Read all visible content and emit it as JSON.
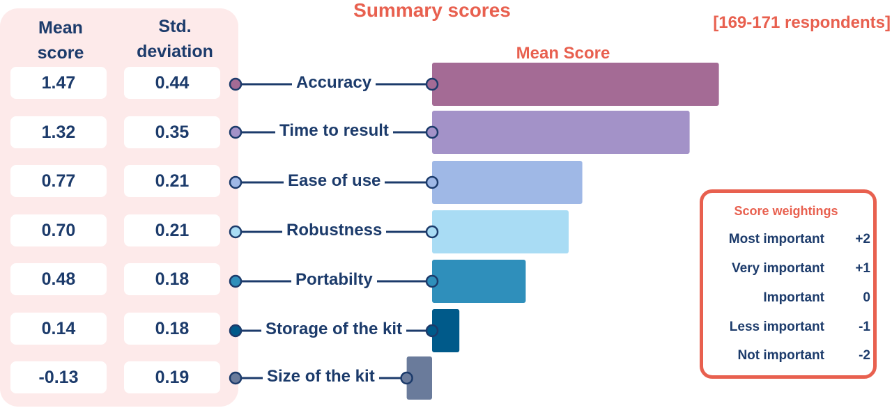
{
  "title": "Summary scores",
  "respondents": "[169-171 respondents]",
  "table": {
    "mean_header": [
      "Mean",
      "score"
    ],
    "std_header": [
      "Std.",
      "deviation"
    ],
    "rows": [
      {
        "mean": "1.47",
        "std": "0.44"
      },
      {
        "mean": "1.32",
        "std": "0.35"
      },
      {
        "mean": "0.77",
        "std": "0.21"
      },
      {
        "mean": "0.70",
        "std": "0.21"
      },
      {
        "mean": "0.48",
        "std": "0.18"
      },
      {
        "mean": "0.14",
        "std": "0.18"
      },
      {
        "mean": "-0.13",
        "std": "0.19"
      }
    ]
  },
  "chart_data": {
    "type": "bar",
    "orientation": "horizontal",
    "title": "Mean Score",
    "categories": [
      "Accuracy",
      "Time to result",
      "Ease of use",
      "Robustness",
      "Portabilty",
      "Storage of the kit",
      "Size of the kit"
    ],
    "values": [
      1.47,
      1.32,
      0.77,
      0.7,
      0.48,
      0.14,
      -0.13
    ],
    "std_deviation": [
      0.44,
      0.35,
      0.21,
      0.21,
      0.18,
      0.18,
      0.19
    ],
    "colors": [
      "#a46b95",
      "#a392c8",
      "#9fb8e6",
      "#a9dcf4",
      "#2f8fbb",
      "#005a8a",
      "#6a7b9b"
    ],
    "dot_colors": [
      "#a46b95",
      "#a392c8",
      "#9fb8e6",
      "#a9dcf4",
      "#2f8fbb",
      "#005a8a",
      "#6a7b9b"
    ],
    "grid": false,
    "legend": "none"
  },
  "weights": {
    "title": "Score weightings",
    "items": [
      {
        "label": "Most important",
        "value": "+2"
      },
      {
        "label": "Very important",
        "value": "+1"
      },
      {
        "label": "Important",
        "value": "0"
      },
      {
        "label": "Less important",
        "value": "-1"
      },
      {
        "label": "Not important",
        "value": "-2"
      }
    ]
  },
  "colors": {
    "accent": "#e8604f",
    "text": "#1c3b6b",
    "panel": "#fdeaea"
  }
}
